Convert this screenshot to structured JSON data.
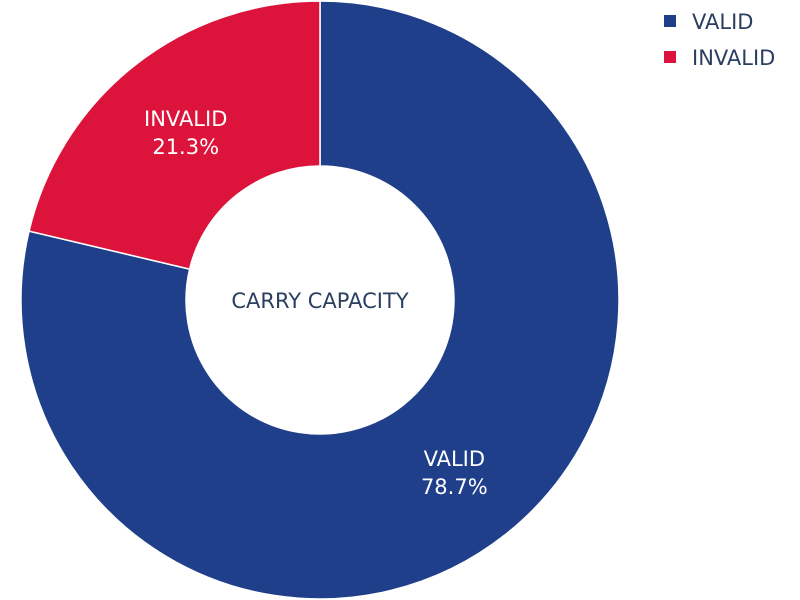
{
  "chart_data": {
    "type": "pie",
    "hole": true,
    "center_text": "CARRY CAPACITY",
    "categories": [
      "VALID",
      "INVALID"
    ],
    "values": [
      78.7,
      21.3
    ],
    "percent_labels": [
      "78.7%",
      "21.3%"
    ],
    "colors": [
      "#1f3f8a",
      "#dc143c"
    ],
    "legend": {
      "placement": "top-right",
      "entries": [
        "VALID",
        "INVALID"
      ]
    }
  }
}
